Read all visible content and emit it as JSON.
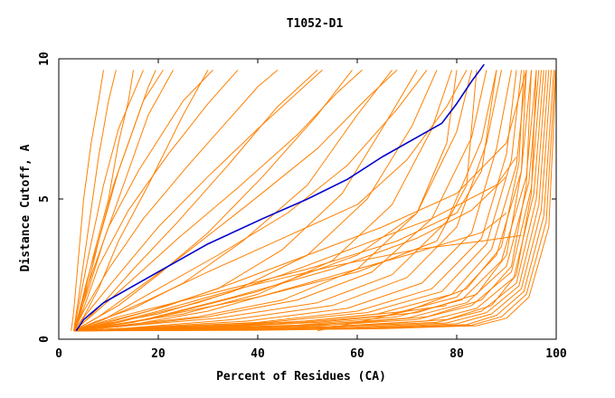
{
  "chart_data": {
    "type": "line",
    "title": "T1052-D1",
    "xlabel": "Percent of Residues (CA)",
    "ylabel": "Distance Cutoff, A",
    "xlim": [
      0,
      100
    ],
    "ylim": [
      0,
      10
    ],
    "x_ticks": [
      "0",
      "20",
      "40",
      "60",
      "80",
      "100"
    ],
    "y_ticks": [
      "0",
      "5",
      "10"
    ],
    "grid": false,
    "legend": "none",
    "colors": {
      "highlight": "#0000cc",
      "others": "#ff8000"
    },
    "highlight": {
      "x": [
        3.5,
        5,
        7,
        9,
        14,
        20,
        30,
        41,
        50,
        58,
        65,
        72,
        77,
        80,
        83,
        85.5
      ],
      "y": [
        0.3,
        0.7,
        1.0,
        1.3,
        1.8,
        2.4,
        3.4,
        4.3,
        5.0,
        5.7,
        6.5,
        7.2,
        7.7,
        8.4,
        9.2,
        9.8
      ]
    },
    "others": [
      {
        "x": [
          2.5,
          3,
          4,
          5,
          6.5,
          8,
          9
        ],
        "y": [
          0.3,
          1,
          3,
          5,
          7,
          8.5,
          9.6
        ]
      },
      {
        "x": [
          3,
          4,
          6,
          8,
          10,
          11.5
        ],
        "y": [
          0.3,
          1.5,
          4,
          6.5,
          8.5,
          9.6
        ]
      },
      {
        "x": [
          3,
          5,
          7,
          10,
          12,
          14,
          15
        ],
        "y": [
          0.3,
          1.5,
          3,
          5,
          7,
          8.5,
          9.6
        ]
      },
      {
        "x": [
          3,
          4.5,
          6,
          8,
          11,
          15,
          18,
          19.5
        ],
        "y": [
          0.3,
          1,
          2,
          3.5,
          5.5,
          7.5,
          9,
          9.6
        ]
      },
      {
        "x": [
          3,
          4,
          5.5,
          8,
          12,
          17,
          21
        ],
        "y": [
          0.3,
          0.9,
          2,
          3.5,
          6,
          8.5,
          9.6
        ]
      },
      {
        "x": [
          3,
          4,
          6,
          9,
          13,
          18,
          23
        ],
        "y": [
          0.3,
          0.8,
          1.8,
          3.5,
          5.5,
          8,
          9.6
        ]
      },
      {
        "x": [
          3,
          4,
          5,
          7,
          10,
          16,
          25,
          31
        ],
        "y": [
          0.3,
          0.8,
          1.5,
          2.5,
          4,
          6,
          8.5,
          9.6
        ]
      },
      {
        "x": [
          3,
          4,
          6,
          9,
          12,
          17
        ],
        "y": [
          0.3,
          1.2,
          3,
          5.5,
          7.5,
          9.6
        ]
      },
      {
        "x": [
          3,
          5,
          8,
          12,
          18,
          25,
          30
        ],
        "y": [
          0.3,
          0.8,
          1.8,
          3.5,
          5.5,
          8,
          9.6
        ]
      },
      {
        "x": [
          3,
          5,
          9,
          15,
          24,
          34,
          44,
          52
        ],
        "y": [
          0.3,
          0.6,
          1.3,
          2.5,
          4.2,
          6.2,
          8.3,
          9.6
        ]
      },
      {
        "x": [
          3,
          6,
          12,
          20,
          30,
          41,
          52,
          59
        ],
        "y": [
          0.3,
          0.6,
          1.2,
          2.3,
          3.8,
          5.8,
          8,
          9.6
        ]
      },
      {
        "x": [
          3,
          7,
          15,
          25,
          37,
          50,
          60,
          67
        ],
        "y": [
          0.3,
          0.6,
          1.1,
          2,
          3.5,
          5.5,
          8,
          9.6
        ]
      },
      {
        "x": [
          3,
          8,
          18,
          32,
          45,
          57,
          66,
          72
        ],
        "y": [
          0.3,
          0.55,
          1,
          1.8,
          3.2,
          5.2,
          7.8,
          9.6
        ]
      },
      {
        "x": [
          3,
          8,
          20,
          35,
          50,
          62,
          71,
          76
        ],
        "y": [
          0.3,
          0.5,
          0.9,
          1.7,
          3,
          5,
          7.6,
          9.6
        ]
      },
      {
        "x": [
          3,
          10,
          25,
          40,
          55,
          67,
          75,
          79
        ],
        "y": [
          0.3,
          0.5,
          0.9,
          1.6,
          2.8,
          4.8,
          7.5,
          9.6
        ]
      },
      {
        "x": [
          3,
          10,
          28,
          45,
          60,
          72,
          80,
          83
        ],
        "y": [
          0.3,
          0.45,
          0.8,
          1.4,
          2.5,
          4.5,
          7.4,
          9.6
        ]
      },
      {
        "x": [
          3,
          12,
          30,
          48,
          63,
          75,
          83,
          86
        ],
        "y": [
          0.3,
          0.45,
          0.8,
          1.4,
          2.4,
          4.3,
          7.2,
          9.6
        ]
      },
      {
        "x": [
          3,
          12,
          32,
          52,
          67,
          78,
          85,
          88
        ],
        "y": [
          0.3,
          0.45,
          0.75,
          1.3,
          2.3,
          4.2,
          7.1,
          9.6
        ]
      },
      {
        "x": [
          3,
          14,
          35,
          55,
          70,
          80,
          86,
          89
        ],
        "y": [
          0.3,
          0.4,
          0.7,
          1.2,
          2.2,
          4,
          7,
          9.6
        ]
      },
      {
        "x": [
          3,
          15,
          38,
          58,
          73,
          83,
          88,
          91
        ],
        "y": [
          0.3,
          0.4,
          0.65,
          1.1,
          2,
          3.8,
          6.8,
          9.6
        ]
      },
      {
        "x": [
          3,
          16,
          40,
          60,
          75,
          85,
          90,
          92
        ],
        "y": [
          0.3,
          0.4,
          0.6,
          1,
          1.8,
          3.6,
          6.6,
          9.6
        ]
      },
      {
        "x": [
          3,
          17,
          42,
          62,
          77,
          86,
          91,
          93
        ],
        "y": [
          0.3,
          0.4,
          0.6,
          0.95,
          1.7,
          3.4,
          6.4,
          9.6
        ]
      },
      {
        "x": [
          3,
          18,
          44,
          64,
          79,
          87,
          92,
          94
        ],
        "y": [
          0.3,
          0.4,
          0.55,
          0.9,
          1.6,
          3.2,
          6.2,
          9.6
        ]
      },
      {
        "x": [
          3,
          20,
          46,
          66,
          80,
          88,
          93,
          95
        ],
        "y": [
          0.3,
          0.38,
          0.55,
          0.85,
          1.5,
          3,
          6,
          9.6
        ]
      },
      {
        "x": [
          3,
          22,
          48,
          68,
          81,
          89,
          94,
          96
        ],
        "y": [
          0.3,
          0.38,
          0.5,
          0.8,
          1.4,
          2.8,
          5.8,
          9.6
        ]
      },
      {
        "x": [
          3,
          24,
          50,
          70,
          82,
          90,
          94.5,
          96.5
        ],
        "y": [
          0.3,
          0.36,
          0.5,
          0.75,
          1.3,
          2.6,
          5.6,
          9.6
        ]
      },
      {
        "x": [
          3,
          26,
          52,
          72,
          83,
          91,
          95,
          97
        ],
        "y": [
          0.3,
          0.36,
          0.48,
          0.7,
          1.2,
          2.4,
          5.4,
          9.6
        ]
      },
      {
        "x": [
          3,
          28,
          54,
          74,
          84,
          91.5,
          95.5,
          97.5
        ],
        "y": [
          0.3,
          0.35,
          0.45,
          0.65,
          1.1,
          2.2,
          5.2,
          9.6
        ]
      },
      {
        "x": [
          3,
          30,
          56,
          76,
          85,
          92,
          96,
          98
        ],
        "y": [
          0.3,
          0.35,
          0.45,
          0.6,
          1,
          2,
          5,
          9.6
        ]
      },
      {
        "x": [
          3,
          32,
          58,
          78,
          86,
          92.5,
          96.5,
          98.5
        ],
        "y": [
          0.3,
          0.34,
          0.42,
          0.58,
          0.95,
          1.9,
          4.8,
          9.6
        ]
      },
      {
        "x": [
          3,
          34,
          60,
          80,
          87,
          93,
          97,
          99
        ],
        "y": [
          0.3,
          0.34,
          0.4,
          0.55,
          0.9,
          1.8,
          4.6,
          9.6
        ]
      },
      {
        "x": [
          3,
          36,
          62,
          82,
          88,
          93.5,
          97.5,
          99.5
        ],
        "y": [
          0.3,
          0.33,
          0.4,
          0.52,
          0.85,
          1.7,
          4.4,
          9.6
        ]
      },
      {
        "x": [
          3,
          38,
          64,
          83,
          89,
          94,
          98,
          99.8
        ],
        "y": [
          0.3,
          0.33,
          0.38,
          0.5,
          0.8,
          1.6,
          4.2,
          9.6
        ]
      },
      {
        "x": [
          3,
          40,
          66,
          84,
          90,
          94.5,
          98.5,
          100
        ],
        "y": [
          0.3,
          0.32,
          0.38,
          0.48,
          0.75,
          1.5,
          4,
          9.6
        ]
      },
      {
        "x": [
          3,
          30,
          55,
          74,
          85,
          91,
          94,
          95
        ],
        "y": [
          0.3,
          0.38,
          0.52,
          0.8,
          1.4,
          2.6,
          5.5,
          9.6
        ]
      },
      {
        "x": [
          3,
          35,
          60,
          78,
          87,
          92,
          95,
          96
        ],
        "y": [
          0.3,
          0.36,
          0.48,
          0.7,
          1.2,
          2.3,
          5.2,
          9.6
        ]
      },
      {
        "x": [
          3,
          28,
          52,
          72,
          84,
          90,
          93,
          94
        ],
        "y": [
          0.3,
          0.4,
          0.6,
          0.95,
          1.6,
          3,
          6,
          9.6
        ]
      },
      {
        "x": [
          3,
          25,
          50,
          70,
          82,
          89,
          92.5,
          93.5
        ],
        "y": [
          0.3,
          0.42,
          0.65,
          1,
          1.8,
          3.3,
          6.3,
          9.6
        ]
      },
      {
        "x": [
          3,
          14,
          30,
          50,
          70,
          85,
          90
        ],
        "y": [
          0.3,
          0.5,
          1,
          2,
          3,
          3.8,
          4.5
        ]
      },
      {
        "x": [
          3,
          12,
          28,
          45,
          60,
          75,
          88,
          92
        ],
        "y": [
          0.3,
          0.6,
          1.3,
          2.3,
          3.3,
          4.3,
          5.5,
          6.5
        ]
      },
      {
        "x": [
          3,
          10,
          22,
          35,
          50,
          65,
          80,
          90,
          94
        ],
        "y": [
          0.3,
          0.6,
          1.2,
          2,
          3,
          4,
          5.2,
          7,
          9.6
        ]
      },
      {
        "x": [
          3,
          9,
          18,
          30,
          45,
          60,
          70,
          78,
          82
        ],
        "y": [
          0.3,
          0.7,
          1.4,
          2.4,
          3.6,
          4.8,
          6.4,
          8.3,
          9.6
        ]
      },
      {
        "x": [
          3,
          10,
          20,
          32,
          46,
          58,
          68,
          74
        ],
        "y": [
          0.3,
          0.8,
          1.8,
          3,
          4.5,
          6.2,
          8.2,
          9.6
        ]
      },
      {
        "x": [
          3,
          8,
          15,
          25,
          38,
          52,
          62,
          68
        ],
        "y": [
          0.3,
          0.8,
          1.7,
          3,
          4.8,
          6.8,
          8.6,
          9.6
        ]
      },
      {
        "x": [
          3,
          7,
          14,
          24,
          36,
          48,
          56,
          61
        ],
        "y": [
          0.3,
          0.9,
          2,
          3.6,
          5.4,
          7.3,
          8.8,
          9.6
        ]
      },
      {
        "x": [
          3,
          6,
          12,
          20,
          30,
          40,
          48,
          53
        ],
        "y": [
          0.3,
          1,
          2.3,
          4,
          5.8,
          7.5,
          8.8,
          9.6
        ]
      },
      {
        "x": [
          3,
          5,
          10,
          17,
          26,
          34,
          40,
          44
        ],
        "y": [
          0.3,
          1,
          2.5,
          4.3,
          6.2,
          7.8,
          9,
          9.6
        ]
      },
      {
        "x": [
          3,
          5,
          8,
          14,
          22,
          30,
          36
        ],
        "y": [
          0.3,
          1.1,
          2.6,
          4.6,
          6.6,
          8.4,
          9.6
        ]
      },
      {
        "x": [
          3,
          9,
          20,
          36,
          55,
          72,
          85,
          93
        ],
        "y": [
          0.3,
          0.5,
          1,
          1.8,
          2.6,
          3.2,
          3.5,
          3.7
        ]
      },
      {
        "x": [
          3,
          15,
          35,
          55,
          72,
          83,
          90
        ],
        "y": [
          0.3,
          0.6,
          1.5,
          2.5,
          3.6,
          4.6,
          5.8
        ]
      },
      {
        "x": [
          3,
          12,
          30,
          50,
          68,
          80,
          85,
          88
        ],
        "y": [
          0.3,
          0.8,
          1.6,
          2.5,
          3.5,
          4.5,
          6,
          9.6
        ]
      },
      {
        "x": [
          52,
          60,
          70,
          78
        ],
        "y": [
          0.3,
          0.6,
          1,
          1.2
        ]
      },
      {
        "x": [
          8,
          20,
          40,
          60,
          76,
          82,
          84
        ],
        "y": [
          0.4,
          0.8,
          1.5,
          2.4,
          3.5,
          5.5,
          9.6
        ]
      },
      {
        "x": [
          3,
          18,
          40,
          60,
          72,
          78,
          80
        ],
        "y": [
          0.3,
          0.7,
          1.7,
          3,
          4.5,
          7,
          9.6
        ]
      }
    ]
  }
}
